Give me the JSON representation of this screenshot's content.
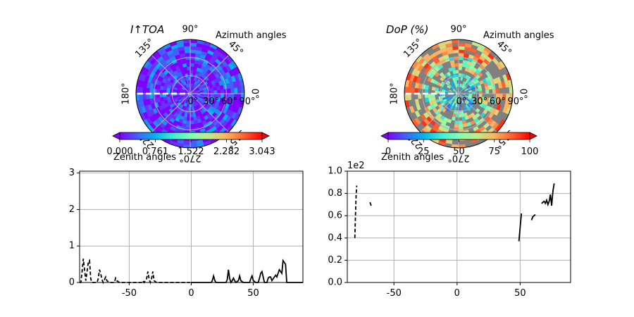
{
  "colors": {
    "line": "#000000",
    "grid": "#b0b0b0",
    "polar_background_intensity": "#7a27ff",
    "polar_background_dop": "#808080",
    "colormap": "rainbow"
  },
  "polar_common": {
    "azimuth_label": "Azimuth angles",
    "zenith_label": "Zenith angles",
    "azimuth_ticks": [
      "0°",
      "45°",
      "90°",
      "135°",
      "180°",
      "225°",
      "270°",
      "315°"
    ],
    "zenith_ticks": [
      "0°",
      "30°",
      "60°",
      "90°"
    ]
  },
  "chart_data": [
    {
      "type": "heatmap",
      "projection": "polar",
      "title": "I↑TOA",
      "colorbar": {
        "ticks": [
          "0.000",
          "0.761",
          "1.522",
          "2.282",
          "3.043"
        ],
        "range": [
          0,
          3.043
        ],
        "extend": "both"
      }
    },
    {
      "type": "heatmap",
      "projection": "polar",
      "title": "DoP (%)",
      "colorbar": {
        "ticks": [
          "0",
          "25",
          "50",
          "75",
          "100"
        ],
        "range": [
          0,
          100
        ],
        "extend": "both"
      }
    },
    {
      "type": "line",
      "xlim": [
        -90,
        90
      ],
      "ylim": [
        0,
        3.05
      ],
      "xticks": [
        "-50",
        "0",
        "50"
      ],
      "yticks": [
        "0",
        "1",
        "2",
        "3"
      ],
      "grid": true,
      "series": [
        {
          "style": "dashed",
          "points": [
            [
              -90,
              0
            ],
            [
              -89,
              0
            ],
            [
              -88,
              0.3
            ],
            [
              -87,
              0.65
            ],
            [
              -86,
              0.35
            ],
            [
              -85,
              0.05
            ],
            [
              -84,
              0.3
            ],
            [
              -83,
              0.55
            ],
            [
              -82,
              0.6
            ],
            [
              -81,
              0.1
            ],
            [
              -80,
              0
            ],
            [
              -76,
              0
            ],
            [
              -75,
              0.1
            ],
            [
              -74,
              0.35
            ],
            [
              -73,
              0.25
            ],
            [
              -72,
              0.08
            ],
            [
              -71,
              0
            ],
            [
              -69,
              0.15
            ],
            [
              -68,
              0.05
            ],
            [
              -66,
              0
            ],
            [
              -62,
              0
            ],
            [
              -61,
              0.12
            ],
            [
              -60,
              0.05
            ],
            [
              -58,
              0
            ],
            [
              -40,
              0
            ],
            [
              -39,
              0.05
            ],
            [
              -38,
              0
            ],
            [
              -36,
              0.1
            ],
            [
              -35,
              0.3
            ],
            [
              -34,
              0.1
            ],
            [
              -33,
              0
            ],
            [
              -32,
              0.1
            ],
            [
              -31,
              0.3
            ],
            [
              -30,
              0.05
            ],
            [
              -28,
              0
            ],
            [
              -1,
              0
            ]
          ]
        },
        {
          "style": "solid",
          "points": [
            [
              0,
              0
            ],
            [
              16,
              0
            ],
            [
              17,
              0.05
            ],
            [
              18,
              0.18
            ],
            [
              19,
              0.05
            ],
            [
              20,
              0
            ],
            [
              28,
              0
            ],
            [
              29,
              0.08
            ],
            [
              30,
              0.35
            ],
            [
              31,
              0.1
            ],
            [
              32,
              0
            ],
            [
              33,
              0.05
            ],
            [
              34,
              0.12
            ],
            [
              35,
              0.05
            ],
            [
              36,
              0
            ],
            [
              38,
              0.05
            ],
            [
              39,
              0.18
            ],
            [
              40,
              0.05
            ],
            [
              42,
              0
            ],
            [
              47,
              0
            ],
            [
              48,
              0.1
            ],
            [
              49,
              0.18
            ],
            [
              50,
              0.05
            ],
            [
              52,
              0
            ],
            [
              54,
              0
            ],
            [
              55,
              0.12
            ],
            [
              56,
              0.25
            ],
            [
              57,
              0.3
            ],
            [
              58,
              0.15
            ],
            [
              59,
              0
            ],
            [
              61,
              0
            ],
            [
              62,
              0.12
            ],
            [
              63,
              0.15
            ],
            [
              64,
              0.15
            ],
            [
              65,
              0.05
            ],
            [
              66,
              0.1
            ],
            [
              67,
              0.15
            ],
            [
              68,
              0.2
            ],
            [
              69,
              0.15
            ],
            [
              70,
              0.25
            ],
            [
              71,
              0.35
            ],
            [
              72,
              0.3
            ],
            [
              73,
              0.25
            ],
            [
              74,
              0.6
            ],
            [
              75,
              0.55
            ],
            [
              76,
              0.5
            ],
            [
              77,
              0
            ],
            [
              90,
              0
            ]
          ]
        }
      ]
    },
    {
      "type": "line",
      "xlim": [
        -87,
        90
      ],
      "ylim": [
        0,
        1.0
      ],
      "offset_label": "1e2",
      "xticks": [
        "-50",
        "0",
        "50"
      ],
      "yticks": [
        "0.0",
        "0.2",
        "0.4",
        "0.6",
        "0.8",
        "1.0"
      ],
      "grid": true,
      "series": [
        {
          "style": "dashed",
          "points": [
            [
              -81,
              0.4
            ],
            [
              -80.5,
              0.6
            ],
            [
              -80,
              0.78
            ],
            [
              -79.5,
              0.87
            ]
          ]
        },
        {
          "style": "dashed",
          "points": [
            [
              -69,
              0.72
            ],
            [
              -68,
              0.69
            ]
          ]
        },
        {
          "style": "solid",
          "points": [
            [
              49,
              0.37
            ],
            [
              51,
              0.62
            ]
          ]
        },
        {
          "style": "solid",
          "points": [
            [
              59,
              0.56
            ],
            [
              60,
              0.59
            ],
            [
              61,
              0.6
            ],
            [
              62,
              0.61
            ]
          ]
        },
        {
          "style": "solid",
          "points": [
            [
              67,
              0.71
            ],
            [
              68,
              0.72
            ],
            [
              69,
              0.73
            ],
            [
              70,
              0.71
            ],
            [
              71,
              0.74
            ],
            [
              72,
              0.7
            ],
            [
              73,
              0.73
            ],
            [
              74,
              0.79
            ],
            [
              75,
              0.69
            ],
            [
              76,
              0.82
            ],
            [
              77,
              0.89
            ]
          ]
        }
      ]
    }
  ]
}
